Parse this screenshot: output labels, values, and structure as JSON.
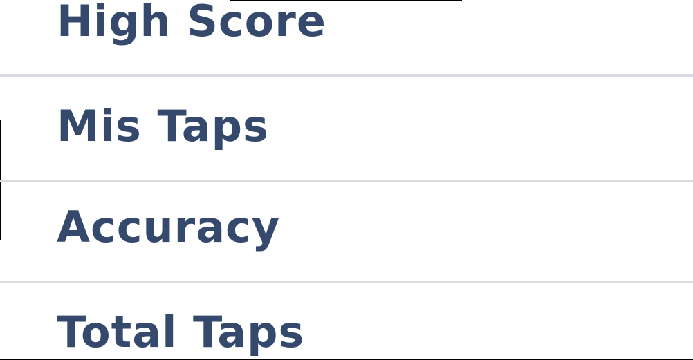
{
  "stats": {
    "rows": [
      {
        "label": "High Score"
      },
      {
        "label": "Mis Taps"
      },
      {
        "label": "Accuracy"
      },
      {
        "label": "Total Taps"
      }
    ]
  },
  "colors": {
    "label_text": "#34496b",
    "divider": "#d9dbe0",
    "background": "#ffffff"
  }
}
